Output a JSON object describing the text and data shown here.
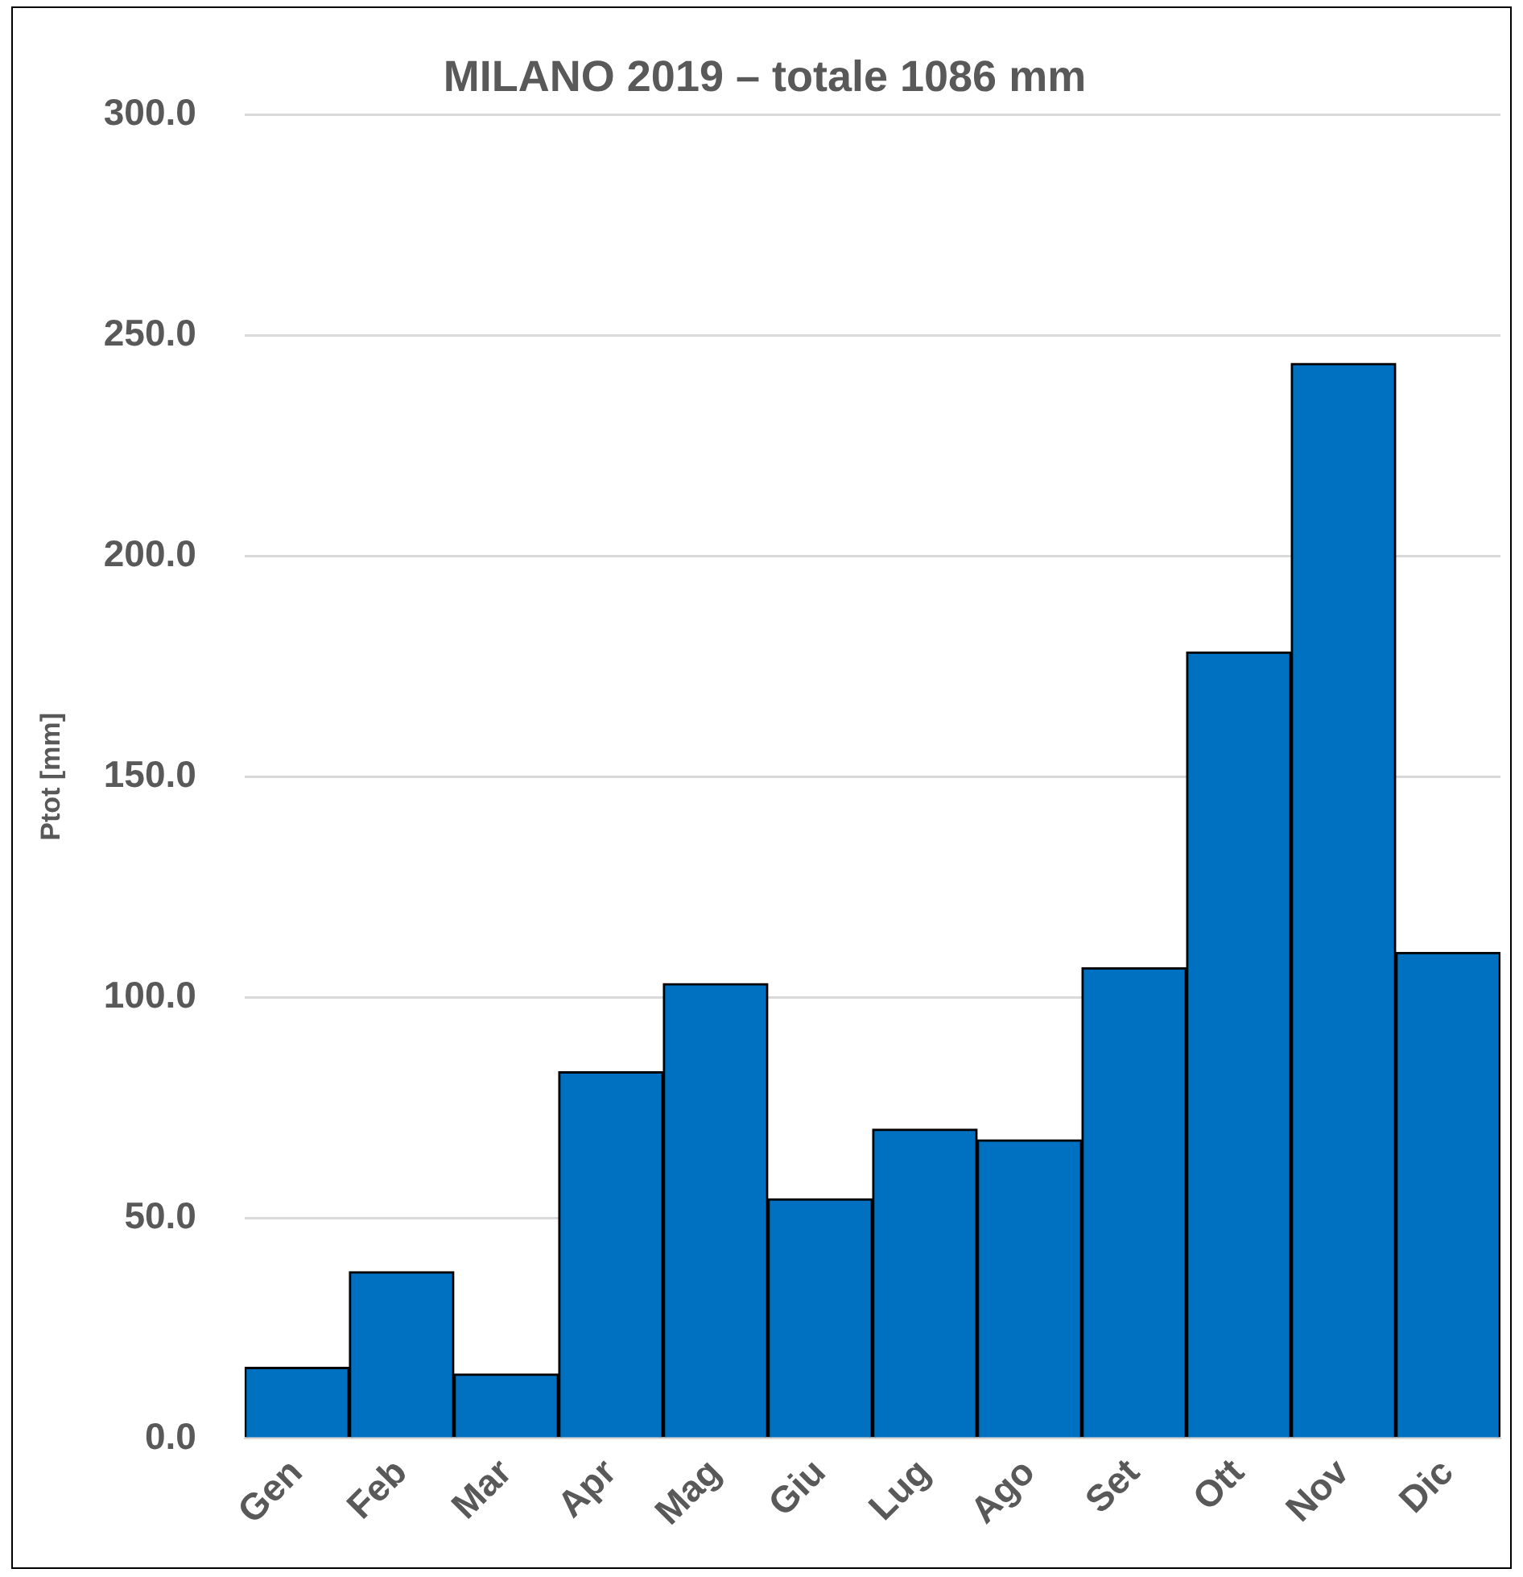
{
  "chart_data": {
    "type": "bar",
    "title": "MILANO 2019 – totale 1086 mm",
    "ylabel": "Ptot [mm]",
    "categories": [
      "Gen",
      "Feb",
      "Mar",
      "Apr",
      "Mag",
      "Giu",
      "Lug",
      "Ago",
      "Set",
      "Ott",
      "Nov",
      "Dic"
    ],
    "values": [
      16.1,
      37.8,
      14.6,
      83.1,
      103.1,
      54.3,
      70.1,
      67.7,
      106.7,
      178.3,
      243.7,
      110.2
    ],
    "color": "#0070c0",
    "ylim": [
      0,
      300
    ],
    "yticks": [
      {
        "value": 0,
        "label": "0.0"
      },
      {
        "value": 50,
        "label": "50.0"
      },
      {
        "value": 100,
        "label": "100.0"
      },
      {
        "value": 150,
        "label": "150.0"
      },
      {
        "value": 200,
        "label": "200.0"
      },
      {
        "value": 250,
        "label": "250.0"
      },
      {
        "value": 300,
        "label": "300.0"
      }
    ],
    "grid": "y",
    "legend": false
  }
}
